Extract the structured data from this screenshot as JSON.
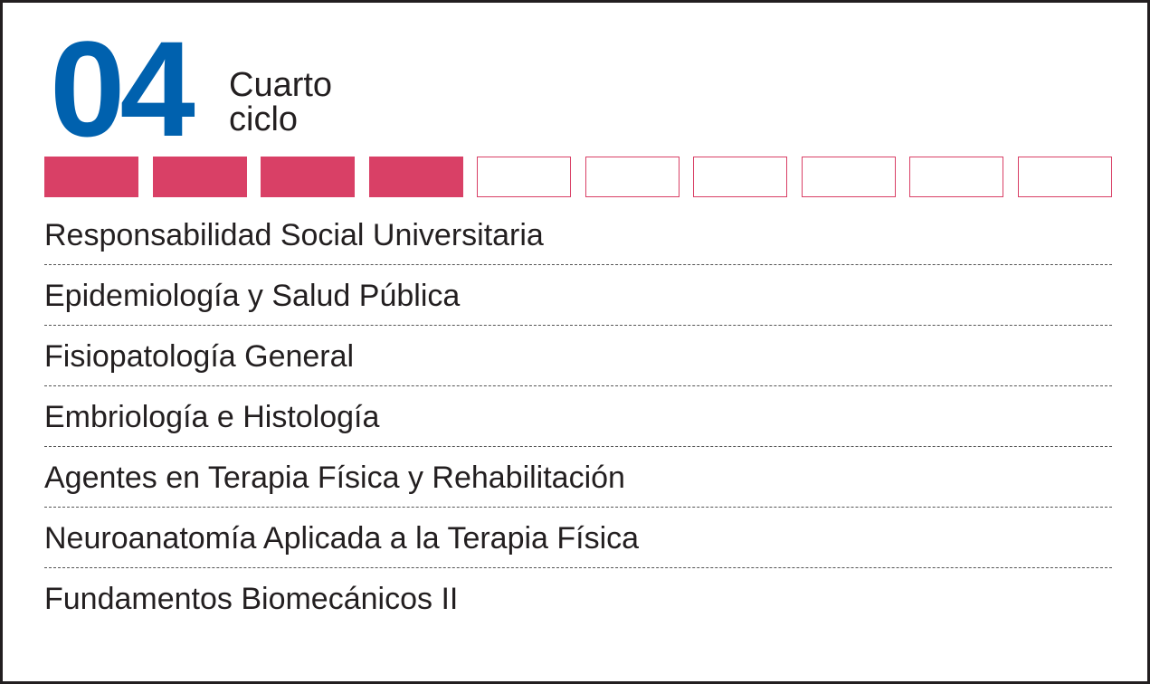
{
  "cycle": {
    "number": "04",
    "label_line1": "Cuarto",
    "label_line2": "ciclo"
  },
  "progress": {
    "total_segments": 10,
    "completed_segments": 4,
    "fill_color": "#d94066",
    "empty_border_color": "#d94066"
  },
  "colors": {
    "number": "#0061ae",
    "text": "#231f20",
    "accent": "#d94066"
  },
  "courses": [
    "Responsabilidad Social Universitaria",
    "Epidemiología y Salud Pública",
    "Fisiopatología General",
    "Embriología e Histología",
    "Agentes en Terapia Física y Rehabilitación",
    "Neuroanatomía Aplicada a la Terapia Física",
    "Fundamentos Biomecánicos II"
  ]
}
